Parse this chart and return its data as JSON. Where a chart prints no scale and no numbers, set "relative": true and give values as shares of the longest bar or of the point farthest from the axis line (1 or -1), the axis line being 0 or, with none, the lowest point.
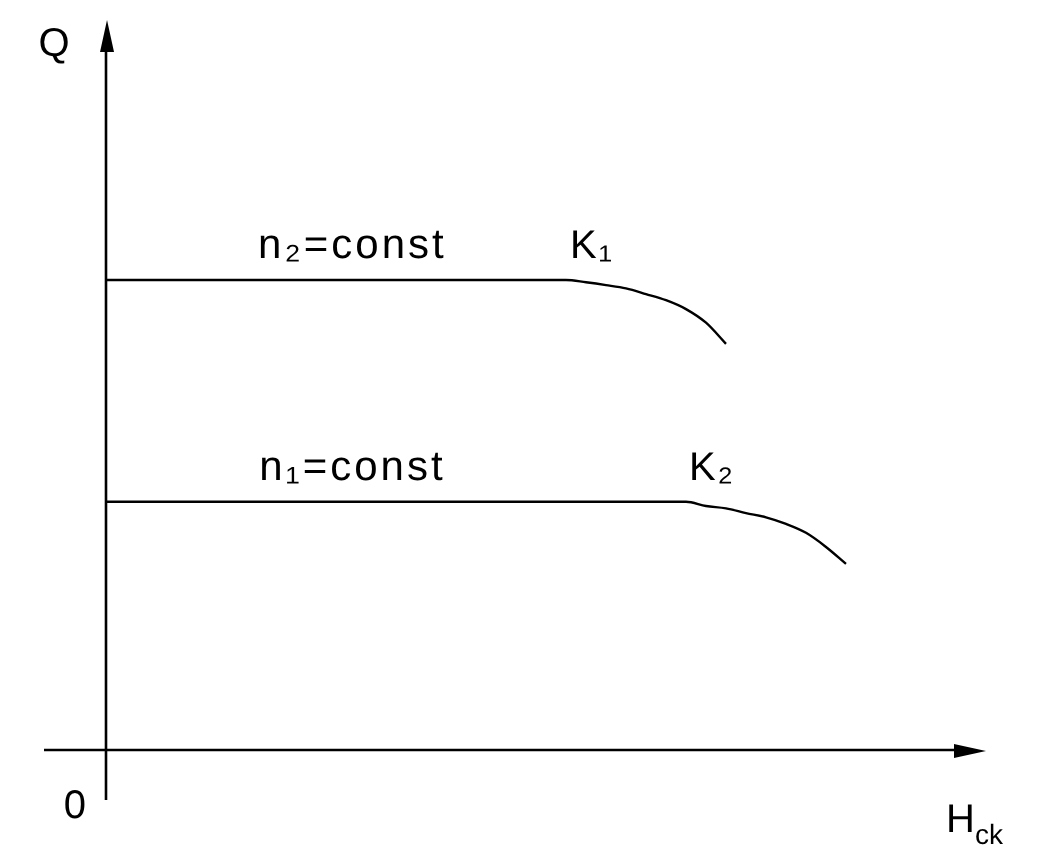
{
  "chart_data": {
    "type": "line",
    "relative": true,
    "xlabel": "H$_{ck}$",
    "legend": false,
    "marker": "none",
    "categories": [
      null,
      null,
      null,
      null,
      null,
      null,
      null,
      null,
      null,
      null,
      null,
      null,
      null,
      null,
      null,
      null,
      null,
      null,
      null,
      null,
      null,
      null,
      null,
      null,
      null,
      null,
      null,
      null,
      null,
      null,
      null,
      null,
      null,
      null,
      null,
      null,
      null,
      null,
      null,
      null,
      null,
      null,
      null,
      null,
      null
    ],
    "series": [
      {
        "name": "n₂=const",
        "color": "#000000",
        "values": [
          1,
          1,
          1,
          1,
          1,
          1,
          1,
          1,
          1,
          1,
          1,
          1,
          1,
          1,
          1,
          1,
          1,
          1,
          1,
          1,
          1,
          1,
          1,
          1,
          0.995,
          0.989,
          0.982,
          0.97,
          0.957,
          0.938,
          0.909,
          0.864,
          null,
          null,
          null,
          null,
          null,
          null,
          null,
          null,
          null,
          null,
          null,
          null,
          null
        ]
      },
      {
        "name": "n₁=const",
        "color": "#000000",
        "values": [
          0.528,
          0.528,
          0.528,
          0.528,
          0.528,
          0.528,
          0.528,
          0.528,
          0.528,
          0.528,
          0.528,
          0.528,
          0.528,
          0.528,
          0.528,
          0.528,
          0.528,
          0.528,
          0.528,
          0.528,
          0.528,
          0.528,
          0.528,
          0.528,
          0.528,
          0.528,
          0.528,
          0.528,
          0.528,
          0.528,
          0.519,
          0.514,
          0.504,
          0.495,
          0.481,
          0.462,
          0.432,
          0.396,
          null,
          null,
          null,
          null,
          null,
          null,
          null
        ]
      }
    ],
    "annotations": [
      "Q",
      "K₁",
      "K₂",
      "0"
    ]
  }
}
